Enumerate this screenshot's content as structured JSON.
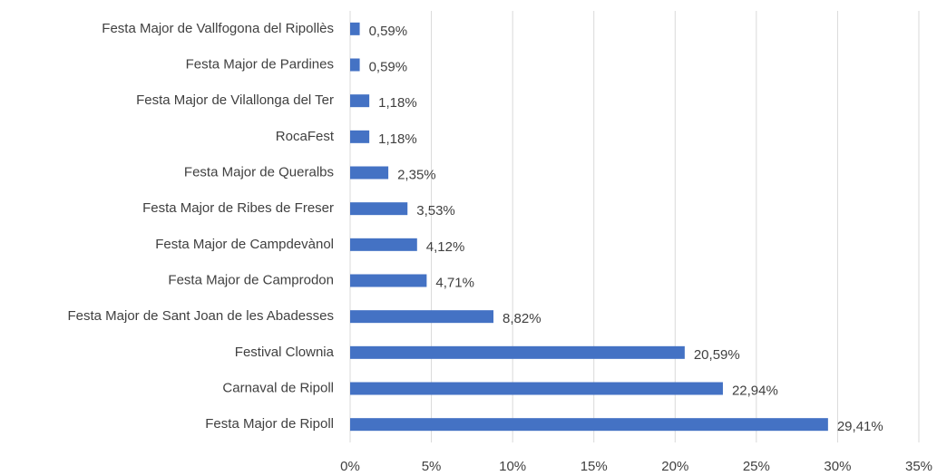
{
  "chart_data": {
    "type": "barh",
    "categories": [
      "Festa Major de Vallfogona del Ripollès",
      "Festa Major de Pardines",
      "Festa Major de Vilallonga del Ter",
      "RocaFest",
      "Festa Major de Queralbs",
      "Festa Major de Ribes de Freser",
      "Festa Major de Campdevànol",
      "Festa Major de Camprodon",
      "Festa Major de Sant Joan de les Abadesses",
      "Festival Clownia",
      "Carnaval de Ripoll",
      "Festa Major de Ripoll"
    ],
    "values": [
      0.59,
      0.59,
      1.18,
      1.18,
      2.35,
      3.53,
      4.12,
      4.71,
      8.82,
      20.59,
      22.94,
      29.41
    ],
    "value_labels": [
      "0,59%",
      "0,59%",
      "1,18%",
      "1,18%",
      "2,35%",
      "3,53%",
      "4,12%",
      "4,71%",
      "8,82%",
      "20,59%",
      "22,94%",
      "29,41%"
    ],
    "color": "#4472c4",
    "xlim": [
      0,
      35
    ],
    "xticks": [
      {
        "value": 0,
        "label": "0%"
      },
      {
        "value": 5,
        "label": "5%"
      },
      {
        "value": 10,
        "label": "10%"
      },
      {
        "value": 15,
        "label": "15%"
      },
      {
        "value": 20,
        "label": "20%"
      },
      {
        "value": 25,
        "label": "25%"
      },
      {
        "value": 30,
        "label": "30%"
      },
      {
        "value": 35,
        "label": "35%"
      }
    ],
    "grid": true
  }
}
